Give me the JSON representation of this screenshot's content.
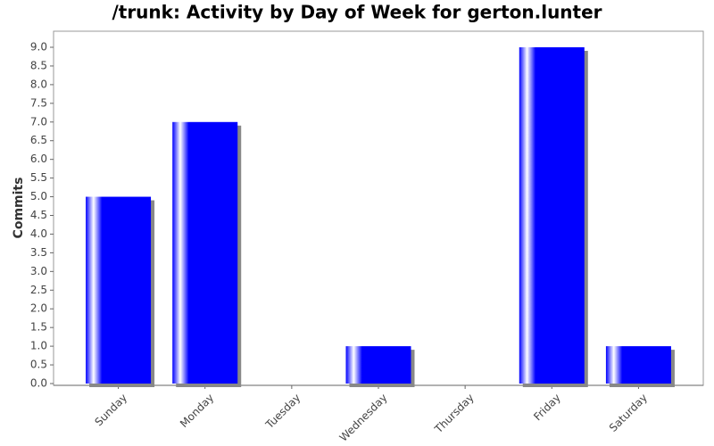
{
  "chart_data": {
    "type": "bar",
    "title": "/trunk: Activity by Day of Week for gerton.lunter",
    "y_label": "Commits",
    "categories": [
      "Sunday",
      "Monday",
      "Tuesday",
      "Wednesday",
      "Thursday",
      "Friday",
      "Saturday"
    ],
    "values": [
      5,
      7,
      0,
      1,
      0,
      9,
      1
    ],
    "color": "#0000ff",
    "ylim": [
      0,
      9.43
    ],
    "yticks": [
      {
        "value": 0,
        "label": "0.0"
      },
      {
        "value": 0.5,
        "label": "0.5"
      },
      {
        "value": 1,
        "label": "1.0"
      },
      {
        "value": 1.5,
        "label": "1.5"
      },
      {
        "value": 2,
        "label": "2.0"
      },
      {
        "value": 2.5,
        "label": "2.5"
      },
      {
        "value": 3,
        "label": "3.0"
      },
      {
        "value": 3.5,
        "label": "3.5"
      },
      {
        "value": 4,
        "label": "4.0"
      },
      {
        "value": 4.5,
        "label": "4.5"
      },
      {
        "value": 5,
        "label": "5.0"
      },
      {
        "value": 5.5,
        "label": "5.5"
      },
      {
        "value": 6,
        "label": "6.0"
      },
      {
        "value": 6.5,
        "label": "6.5"
      },
      {
        "value": 7,
        "label": "7.0"
      },
      {
        "value": 7.5,
        "label": "7.5"
      },
      {
        "value": 8,
        "label": "8.0"
      },
      {
        "value": 8.5,
        "label": "8.5"
      },
      {
        "value": 9,
        "label": "9.0"
      }
    ],
    "grid": false
  }
}
